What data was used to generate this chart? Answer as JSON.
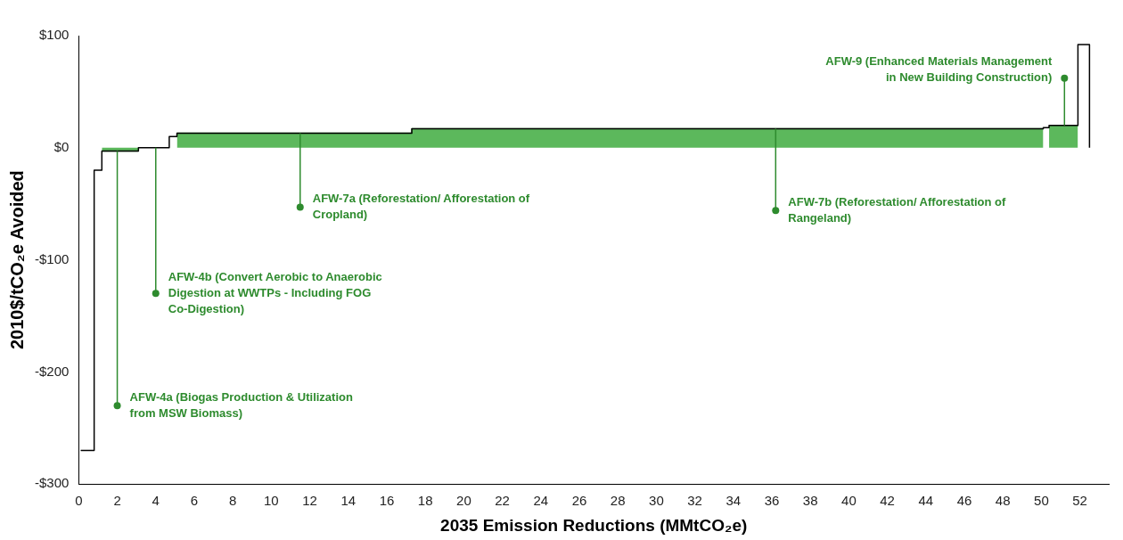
{
  "chart_data": {
    "type": "step",
    "xlabel": "2035 Emission Reductions (MMtCO₂e)",
    "ylabel": "2010$/tCO₂e Avoided",
    "x": [
      0.1,
      0.8,
      1.2,
      3.1,
      4.7,
      5.1,
      17.3,
      50.1,
      50.4,
      51.9,
      52.5
    ],
    "series": [
      {
        "type": "area",
        "color": "#5cb85c",
        "x": [
          1.2,
          3.1,
          4,
          5.1,
          17.3,
          17.3,
          50.1,
          50.2,
          50.4,
          51.9
        ],
        "values": [
          -3,
          -3,
          null,
          13,
          13,
          17,
          17,
          null,
          20,
          20
        ]
      },
      {
        "color": "#000000",
        "values": [
          -270,
          -20,
          -3,
          0,
          10,
          13,
          17,
          18,
          20,
          92,
          0
        ]
      }
    ],
    "xlim": [
      0,
      53.5
    ],
    "xticks": [
      0,
      2,
      4,
      6,
      8,
      10,
      12,
      14,
      16,
      18,
      20,
      22,
      24,
      26,
      28,
      30,
      32,
      34,
      36,
      38,
      40,
      42,
      44,
      46,
      48,
      50,
      52
    ],
    "ylim": [
      -300,
      100
    ],
    "yticks": [
      {
        "value": -300,
        "label": "-$300"
      },
      {
        "value": -200,
        "label": "-$200"
      },
      {
        "value": -100,
        "label": "-$100"
      },
      {
        "value": 0,
        "label": "$0"
      },
      {
        "value": 100,
        "label": "$100"
      }
    ],
    "grid": false,
    "legend": false,
    "marker": "none",
    "annotations": [
      {
        "text": "AFW-4a (Biogas Production & Utilization from MSW Biomass)",
        "x": 2,
        "y": -230
      },
      {
        "text": "AFW-4b (Convert Aerobic to Anaerobic Digestion at WWTPs - Including FOG Co-Digestion)",
        "x": 4,
        "y": -130
      },
      {
        "text": "AFW-7a (Reforestation/ Afforestation of Cropland)",
        "x": 11.5,
        "y": -53
      },
      {
        "text": "AFW-7b (Reforestation/ Afforestation of Rangeland)",
        "x": 36.2,
        "y": -56
      },
      {
        "text": "AFW-9 (Enhanced Materials Management in New Building Construction)",
        "x": 51.2,
        "y": 62
      }
    ]
  }
}
